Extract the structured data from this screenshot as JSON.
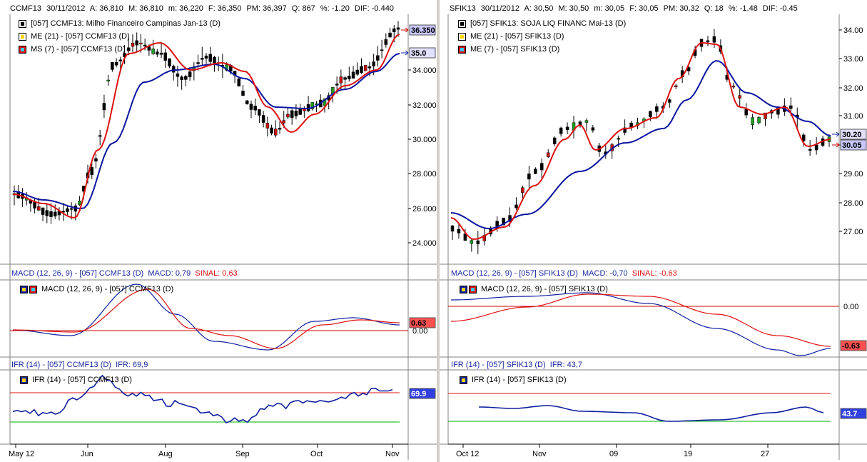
{
  "left": {
    "header": {
      "symbol": "CCMF13",
      "date": "30/11/2012",
      "open": "A: 36,810",
      "high": "M: 36,810",
      "low": "m: 36,220",
      "close": "F: 36,350",
      "avg": "PM: 36,397",
      "qty": "Q: 867",
      "pct": "%: -1.20",
      "dif": "DIF: -0.440"
    },
    "legend": [
      "[057] CCMF13: Milho Financeiro Campinas Jan-13     (D)",
      "ME (21)  - [057] CCMF13 (D)",
      "MS (7)  - [057] CCMF13 (D)"
    ],
    "price_ticks": [
      "34.000",
      "32.000",
      "30.000",
      "28.000",
      "26.000",
      "24.000"
    ],
    "price_tags": {
      "last": "36.350",
      "me": "35.0"
    },
    "macd_header": {
      "name": "MACD (12, 26, 9)  - [057] CCMF13 (D)",
      "value": "MACD: 0,79",
      "signal": "SINAL: 0,63"
    },
    "macd_legend": "MACD (12, 26, 9)  - [057] CCMF13 (D)",
    "macd_ticks": [
      "0.00"
    ],
    "macd_tag": "0.63",
    "ifr_header": {
      "name": "IFR (14)  - [057] CCMF13 (D)",
      "value": "IFR: 69,9"
    },
    "ifr_legend": "IFR (14)  - [057] CCMF13 (D)",
    "ifr_tag": "69.9",
    "x_ticks": [
      "May 12",
      "Jun",
      "Aug",
      "Sep",
      "Oct",
      "Nov"
    ]
  },
  "right": {
    "header": {
      "symbol": "SFIK13",
      "date": "30/11/2012",
      "open": "A: 30,50",
      "high": "M: 30,50",
      "low": "m: 30,05",
      "close": "F: 30,05",
      "avg": "PM: 30,32",
      "qty": "Q: 18",
      "pct": "%: -1.48",
      "dif": "DIF: -0.45"
    },
    "legend": [
      "[057] SFIK13: SOJA LIQ FINANC Mai-13     (D)",
      "ME (21)  - [057] SFIK13 (D)",
      "ME (7)  - [057] SFIK13 (D)"
    ],
    "price_ticks": [
      "34.00",
      "33.00",
      "32.00",
      "31.00",
      "30.00",
      "29.00",
      "28.00",
      "27.00"
    ],
    "price_tags": {
      "last": "30.05",
      "me": "30.20"
    },
    "macd_header": {
      "name": "MACD (12, 26, 9)  - [057] SFIK13 (D)",
      "value": "MACD: -0,70",
      "signal": "SINAL: -0,63"
    },
    "macd_legend": "MACD (12, 26, 9)  - [057] SFIK13 (D)",
    "macd_ticks": [
      "0.00"
    ],
    "macd_tag": "-0.63",
    "ifr_header": {
      "name": "IFR (14)  - [057] SFIK13 (D)",
      "value": "IFR: 43,7"
    },
    "ifr_legend": "IFR (14)  - [057] SFIK13 (D)",
    "ifr_tag": "43.7",
    "x_ticks": [
      "Oct 12",
      "Nov",
      "09",
      "19",
      "27"
    ]
  },
  "colors": {
    "ma_long": "#0a14a0",
    "ma_short": "#dd1010",
    "macd": "#1020a0",
    "signal": "#dd1010",
    "ifr": "#1020a0",
    "ifr_upper": "#dd1010",
    "ifr_lower": "#00b000",
    "candle_up": "#20a020",
    "candle_down": "#cc1010"
  }
}
